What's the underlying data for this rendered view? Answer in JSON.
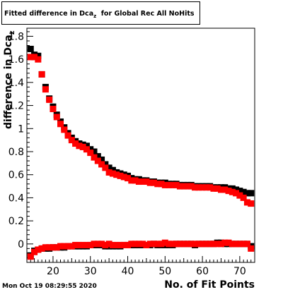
{
  "chart_data": {
    "type": "scatter",
    "title_main": "Fitted difference in Dca",
    "title_sub": "z",
    "title_rest": "  for Global Rec All NoHits",
    "xlabel": "No. of Fit Points",
    "ylabel": "difference in Dca",
    "ylabel_sub": "z",
    "xlim": [
      13,
      74
    ],
    "ylim": [
      -0.16,
      1.87
    ],
    "xticks": [
      20,
      30,
      40,
      50,
      60,
      70
    ],
    "yticks": [
      0,
      0.2,
      0.4,
      0.6,
      0.8,
      1,
      1.2,
      1.4,
      1.6,
      1.8
    ],
    "ytick_labels": [
      "0",
      "0.2",
      "0.4",
      "0.6",
      "0.8",
      "1",
      "1.2",
      "1.4",
      "1.6",
      "1.8"
    ],
    "series": [
      {
        "color": "#000000",
        "x": [
          14,
          15,
          16,
          17,
          18,
          19,
          20,
          21,
          22,
          23,
          24,
          25,
          26,
          27,
          28,
          29,
          30,
          31,
          32,
          33,
          34,
          35,
          36,
          37,
          38,
          39,
          40,
          41,
          42,
          43,
          44,
          45,
          46,
          47,
          48,
          49,
          50,
          51,
          52,
          53,
          54,
          55,
          56,
          57,
          58,
          59,
          60,
          61,
          62,
          63,
          64,
          65,
          66,
          67,
          68,
          69,
          70,
          71,
          72,
          73
        ],
        "values": [
          1.69,
          1.64,
          1.63,
          1.47,
          1.36,
          1.26,
          1.19,
          1.12,
          1.06,
          1.01,
          0.96,
          0.92,
          0.89,
          0.87,
          0.86,
          0.85,
          0.82,
          0.8,
          0.76,
          0.73,
          0.69,
          0.66,
          0.64,
          0.62,
          0.61,
          0.6,
          0.59,
          0.57,
          0.56,
          0.56,
          0.55,
          0.55,
          0.54,
          0.54,
          0.53,
          0.53,
          0.53,
          0.52,
          0.52,
          0.52,
          0.51,
          0.51,
          0.51,
          0.51,
          0.5,
          0.5,
          0.5,
          0.5,
          0.5,
          0.49,
          0.49,
          0.49,
          0.49,
          0.48,
          0.48,
          0.47,
          0.46,
          0.45,
          0.44,
          0.44
        ]
      },
      {
        "color": "#ff0000",
        "x": [
          14,
          15,
          16,
          17,
          18,
          19,
          20,
          21,
          22,
          23,
          24,
          25,
          26,
          27,
          28,
          29,
          30,
          31,
          32,
          33,
          34,
          35,
          36,
          37,
          38,
          39,
          40,
          41,
          42,
          43,
          44,
          45,
          46,
          47,
          48,
          49,
          50,
          51,
          52,
          53,
          54,
          55,
          56,
          57,
          58,
          59,
          60,
          61,
          62,
          63,
          64,
          65,
          66,
          67,
          68,
          69,
          70,
          71,
          72,
          73
        ],
        "values": [
          1.62,
          1.62,
          1.6,
          1.47,
          1.34,
          1.25,
          1.17,
          1.1,
          1.04,
          0.99,
          0.94,
          0.9,
          0.87,
          0.85,
          0.84,
          0.82,
          0.79,
          0.75,
          0.72,
          0.69,
          0.66,
          0.62,
          0.61,
          0.6,
          0.59,
          0.58,
          0.57,
          0.55,
          0.55,
          0.54,
          0.54,
          0.54,
          0.53,
          0.53,
          0.52,
          0.52,
          0.51,
          0.51,
          0.51,
          0.51,
          0.5,
          0.5,
          0.5,
          0.5,
          0.49,
          0.49,
          0.49,
          0.49,
          0.49,
          0.48,
          0.48,
          0.47,
          0.47,
          0.46,
          0.45,
          0.44,
          0.42,
          0.4,
          0.36,
          0.35
        ]
      },
      {
        "color": "#000000",
        "x": [
          14,
          15,
          16,
          17,
          18,
          19,
          20,
          21,
          22,
          23,
          24,
          25,
          26,
          27,
          28,
          29,
          30,
          31,
          32,
          33,
          34,
          35,
          36,
          37,
          38,
          39,
          40,
          41,
          42,
          43,
          44,
          45,
          46,
          47,
          48,
          49,
          50,
          51,
          52,
          53,
          54,
          55,
          56,
          57,
          58,
          59,
          60,
          61,
          62,
          63,
          64,
          65,
          66,
          67,
          68,
          69,
          70,
          71,
          72,
          73
        ],
        "values": [
          -0.1,
          -0.06,
          -0.05,
          -0.04,
          -0.04,
          -0.04,
          -0.03,
          -0.03,
          -0.03,
          -0.03,
          -0.02,
          -0.02,
          -0.02,
          -0.02,
          -0.02,
          -0.02,
          -0.01,
          -0.01,
          -0.01,
          -0.01,
          -0.02,
          -0.02,
          -0.02,
          -0.02,
          -0.02,
          -0.01,
          -0.01,
          -0.01,
          -0.01,
          -0.01,
          -0.01,
          -0.01,
          -0.01,
          0.0,
          -0.01,
          -0.01,
          -0.01,
          -0.01,
          -0.01,
          0.0,
          0.0,
          0.0,
          0.0,
          0.0,
          -0.01,
          0.0,
          0.0,
          0.0,
          0.0,
          0.0,
          0.01,
          0.01,
          0.0,
          0.0,
          0.0,
          0.0,
          0.0,
          0.0,
          0.0,
          -0.02
        ]
      },
      {
        "color": "#ff0000",
        "x": [
          14,
          15,
          16,
          17,
          18,
          19,
          20,
          21,
          22,
          23,
          24,
          25,
          26,
          27,
          28,
          29,
          30,
          31,
          32,
          33,
          34,
          35,
          36,
          37,
          38,
          39,
          40,
          41,
          42,
          43,
          44,
          45,
          46,
          47,
          48,
          49,
          50,
          51,
          52,
          53,
          54,
          55,
          56,
          57,
          58,
          59,
          60,
          61,
          62,
          63,
          64,
          65,
          66,
          67,
          68,
          69,
          70,
          71,
          72,
          73
        ],
        "values": [
          -0.11,
          -0.07,
          -0.05,
          -0.04,
          -0.03,
          -0.03,
          -0.03,
          -0.03,
          -0.02,
          -0.02,
          -0.02,
          -0.02,
          -0.01,
          -0.01,
          -0.01,
          -0.01,
          -0.01,
          0.0,
          0.0,
          0.0,
          -0.01,
          0.0,
          -0.01,
          -0.01,
          -0.01,
          -0.01,
          -0.01,
          0.0,
          0.0,
          0.0,
          0.0,
          -0.01,
          0.0,
          0.0,
          0.0,
          0.0,
          0.01,
          0.0,
          0.0,
          0.0,
          0.0,
          0.0,
          0.0,
          0.0,
          0.0,
          0.0,
          0.0,
          0.0,
          0.0,
          0.0,
          0.0,
          0.0,
          0.01,
          0.01,
          0.0,
          0.0,
          0.0,
          0.0,
          0.0,
          -0.04
        ]
      }
    ],
    "grid": false,
    "legend": "none"
  },
  "footer": {
    "datestamp": "Mon Oct 19 08:29:55 2020"
  }
}
